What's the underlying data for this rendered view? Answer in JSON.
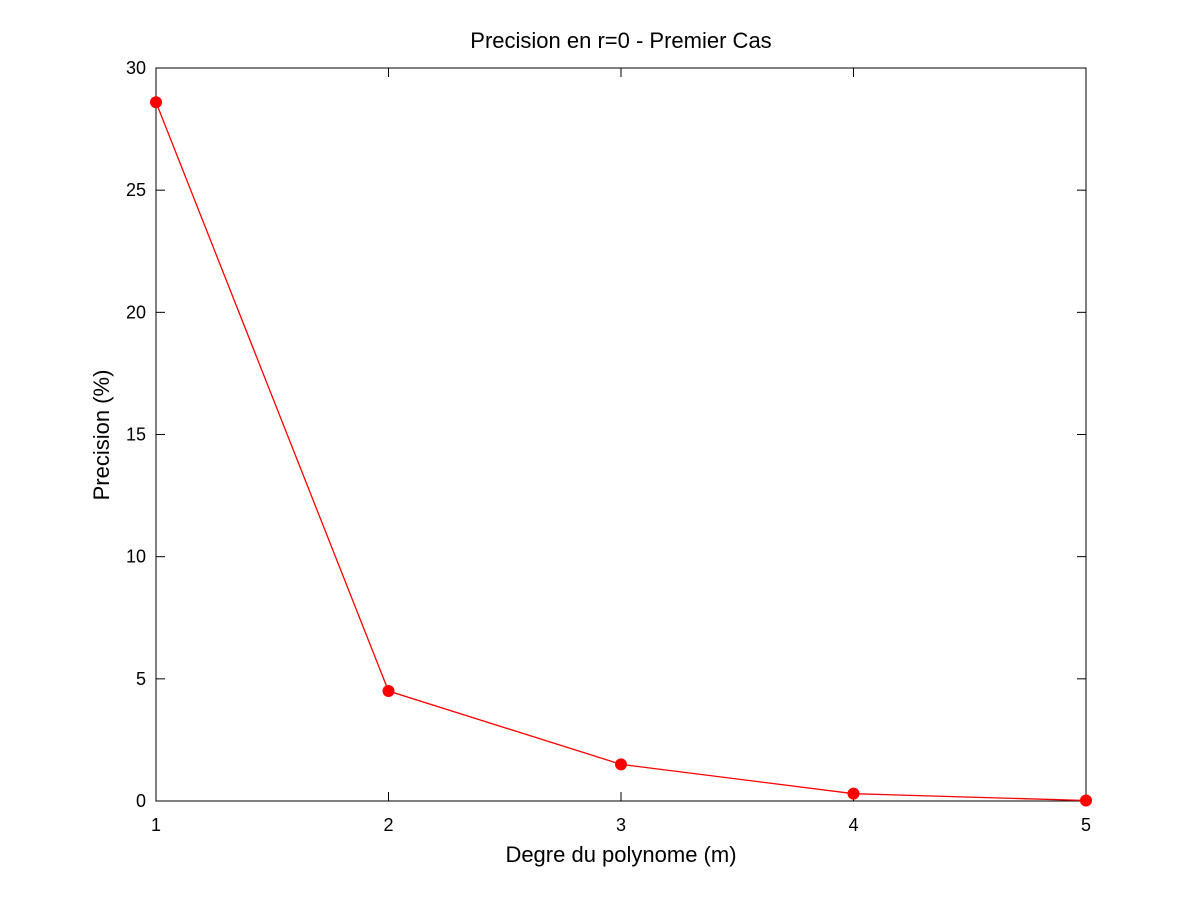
{
  "chart_data": {
    "type": "line",
    "title": "Precision en r=0 - Premier Cas",
    "xlabel": "Degre du polynome (m)",
    "ylabel": "Precision (%)",
    "xlim": [
      1,
      5
    ],
    "ylim": [
      0,
      30
    ],
    "xticks": [
      1,
      2,
      3,
      4,
      5
    ],
    "yticks": [
      0,
      5,
      10,
      15,
      20,
      25,
      30
    ],
    "grid": false,
    "series": [
      {
        "color": "#ff0000",
        "marker": "circle",
        "points": [
          {
            "x": 1,
            "y": 28.6
          },
          {
            "x": 2,
            "y": 4.5
          },
          {
            "x": 3,
            "y": 1.5
          },
          {
            "x": 4,
            "y": 0.3
          },
          {
            "x": 5,
            "y": 0.02
          }
        ]
      }
    ]
  }
}
